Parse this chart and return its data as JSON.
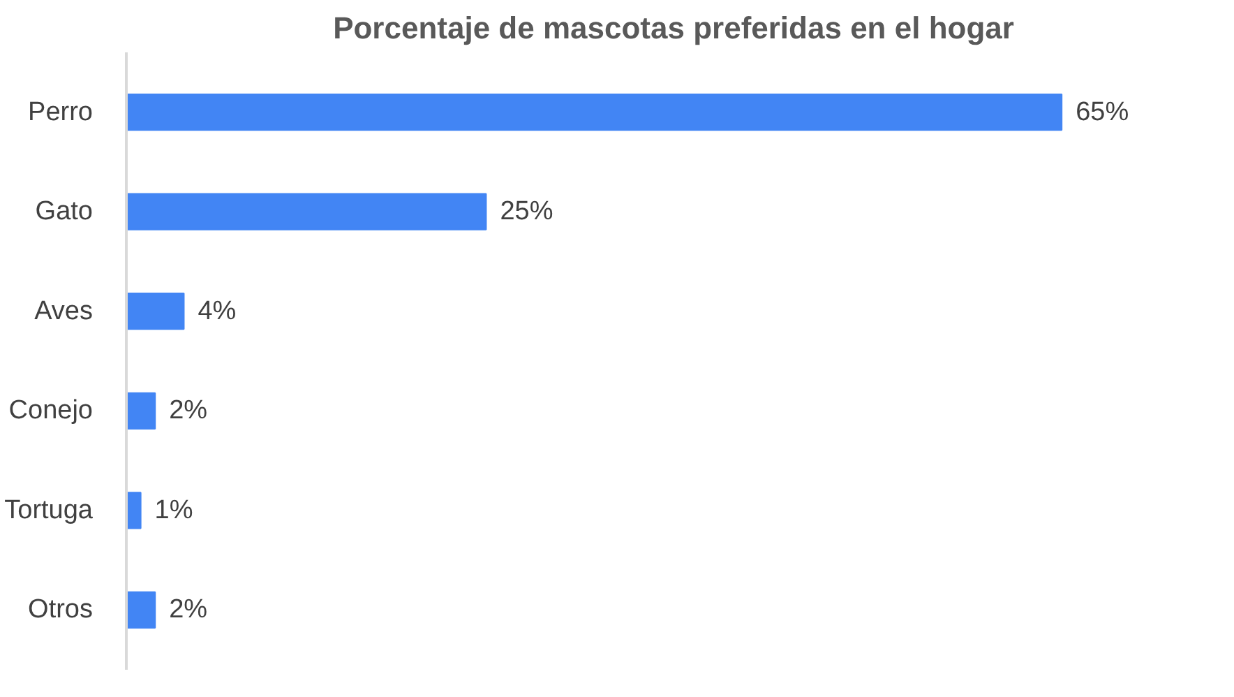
{
  "chart_data": {
    "type": "bar",
    "orientation": "horizontal",
    "title": "Porcentaje de mascotas preferidas en el hogar",
    "categories": [
      "Perro",
      "Gato",
      "Aves",
      "Conejo",
      "Tortuga",
      "Otros"
    ],
    "values": [
      65,
      25,
      4,
      2,
      1,
      2
    ],
    "value_labels": [
      "65%",
      "25%",
      "4%",
      "2%",
      "1%",
      "2%"
    ],
    "color": "#4285f4"
  }
}
